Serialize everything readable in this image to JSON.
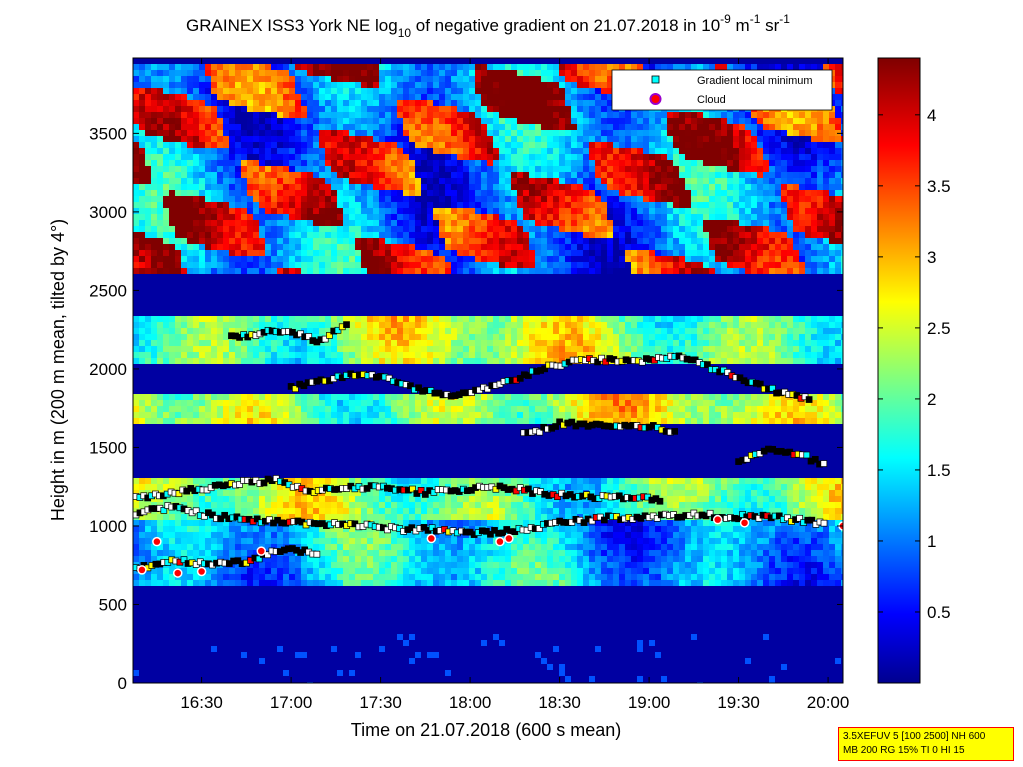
{
  "chart_data": {
    "type": "heatmap",
    "title": {
      "part1": "GRAINEX ISS3 York NE log",
      "log_base": "10",
      "part2": " of negative gradient on 21.07.2018 in 10",
      "unit_exp1": "-9",
      "unit_m": " m",
      "unit_exp2": "-1",
      "unit_sr": " sr",
      "unit_exp3": "-1"
    },
    "xlabel": "Time on 21.07.2018 (600 s mean)",
    "ylabel": "Height in m (200 m mean, tilted by 4°)",
    "x_tick_labels": [
      "16:30",
      "17:00",
      "17:30",
      "18:00",
      "18:30",
      "19:00",
      "19:30",
      "20:00"
    ],
    "x_tick_minutes": [
      990,
      1020,
      1050,
      1080,
      1110,
      1140,
      1170,
      1200
    ],
    "x_range_minutes": [
      967,
      1205
    ],
    "y_ticks": [
      0,
      500,
      1000,
      1500,
      2000,
      2500,
      3000,
      3500
    ],
    "y_tick_labels": [
      "0",
      "500",
      "1000",
      "1500",
      "2000",
      "2500",
      "3000",
      "3500"
    ],
    "y_range": [
      0,
      3980
    ],
    "colorbar": {
      "ticks": [
        0.5,
        1,
        1.5,
        2,
        2.5,
        3,
        3.5,
        4
      ],
      "tick_labels": [
        "0.5",
        "1",
        "1.5",
        "2",
        "2.5",
        "3",
        "3.5",
        "4"
      ],
      "range": [
        0,
        4.4
      ],
      "colormap": "jet"
    },
    "legend": {
      "placement": "top-right",
      "entries": [
        {
          "label": "Gradient local minimum",
          "marker": "square",
          "color": "#00ffff"
        },
        {
          "label": "Cloud",
          "marker": "circle",
          "color": "#ff0000"
        }
      ]
    },
    "field_layers": [
      {
        "name": "base",
        "value": 0.15
      },
      {
        "name": "aerosol-mid-layer",
        "y_from": 600,
        "y_to": 1050,
        "value": 1.4
      },
      {
        "name": "aerosol-upper-layer",
        "y_from": 1050,
        "y_to": 1300,
        "value": 2.1
      },
      {
        "name": "layer-1700",
        "y_from": 1650,
        "y_to": 1850,
        "value": 2.4
      },
      {
        "name": "layer-2150",
        "y_from": 2050,
        "y_to": 2350,
        "value": 2.3
      },
      {
        "name": "upper-patches",
        "y_from": 2600,
        "y_to": 3950,
        "value": 3.1
      }
    ],
    "gradient_minimum_lines": [
      {
        "name": "line-1080",
        "points": [
          [
            968,
            1080
          ],
          [
            980,
            1120
          ],
          [
            995,
            1060
          ],
          [
            1010,
            1030
          ],
          [
            1025,
            1020
          ],
          [
            1040,
            1010
          ],
          [
            1055,
            980
          ],
          [
            1070,
            980
          ],
          [
            1080,
            950
          ],
          [
            1095,
            970
          ],
          [
            1110,
            1020
          ],
          [
            1125,
            1050
          ],
          [
            1140,
            1060
          ],
          [
            1155,
            1070
          ],
          [
            1170,
            1060
          ],
          [
            1185,
            1050
          ],
          [
            1200,
            1010
          ]
        ]
      },
      {
        "name": "line-1250",
        "points": [
          [
            968,
            1180
          ],
          [
            985,
            1220
          ],
          [
            1000,
            1270
          ],
          [
            1015,
            1290
          ],
          [
            1025,
            1220
          ],
          [
            1040,
            1250
          ],
          [
            1055,
            1240
          ],
          [
            1065,
            1210
          ],
          [
            1075,
            1230
          ],
          [
            1090,
            1250
          ],
          [
            1105,
            1210
          ],
          [
            1115,
            1190
          ],
          [
            1130,
            1180
          ],
          [
            1145,
            1170
          ]
        ]
      },
      {
        "name": "line-760",
        "points": [
          [
            968,
            730
          ],
          [
            980,
            780
          ],
          [
            995,
            760
          ],
          [
            1005,
            770
          ],
          [
            1015,
            850
          ],
          [
            1030,
            830
          ]
        ]
      },
      {
        "name": "line-1900",
        "points": [
          [
            1020,
            1880
          ],
          [
            1030,
            1920
          ],
          [
            1040,
            1970
          ],
          [
            1050,
            1950
          ],
          [
            1060,
            1880
          ],
          [
            1075,
            1820
          ],
          [
            1090,
            1900
          ],
          [
            1105,
            2010
          ],
          [
            1120,
            2060
          ],
          [
            1135,
            2050
          ],
          [
            1150,
            2080
          ],
          [
            1165,
            1980
          ],
          [
            1180,
            1870
          ],
          [
            1195,
            1800
          ]
        ]
      },
      {
        "name": "line-1650",
        "points": [
          [
            1098,
            1580
          ],
          [
            1110,
            1650
          ],
          [
            1125,
            1640
          ],
          [
            1140,
            1630
          ],
          [
            1150,
            1600
          ]
        ]
      },
      {
        "name": "line-1480",
        "points": [
          [
            1170,
            1400
          ],
          [
            1180,
            1490
          ],
          [
            1190,
            1460
          ],
          [
            1200,
            1380
          ]
        ]
      },
      {
        "name": "line-2250",
        "points": [
          [
            1000,
            2200
          ],
          [
            1015,
            2250
          ],
          [
            1030,
            2180
          ],
          [
            1040,
            2300
          ]
        ]
      }
    ],
    "cloud_points": [
      [
        970,
        720
      ],
      [
        975,
        900
      ],
      [
        982,
        700
      ],
      [
        990,
        710
      ],
      [
        1010,
        840
      ],
      [
        1067,
        920
      ],
      [
        1090,
        900
      ],
      [
        1093,
        920
      ],
      [
        1163,
        1040
      ],
      [
        1172,
        1020
      ],
      [
        1205,
        1000
      ]
    ]
  },
  "info_box": {
    "line1": "3.5XEFUV 5 [100 2500] NH 600",
    "line2": "MB 200 RG 15% TI 0 HI 15"
  }
}
